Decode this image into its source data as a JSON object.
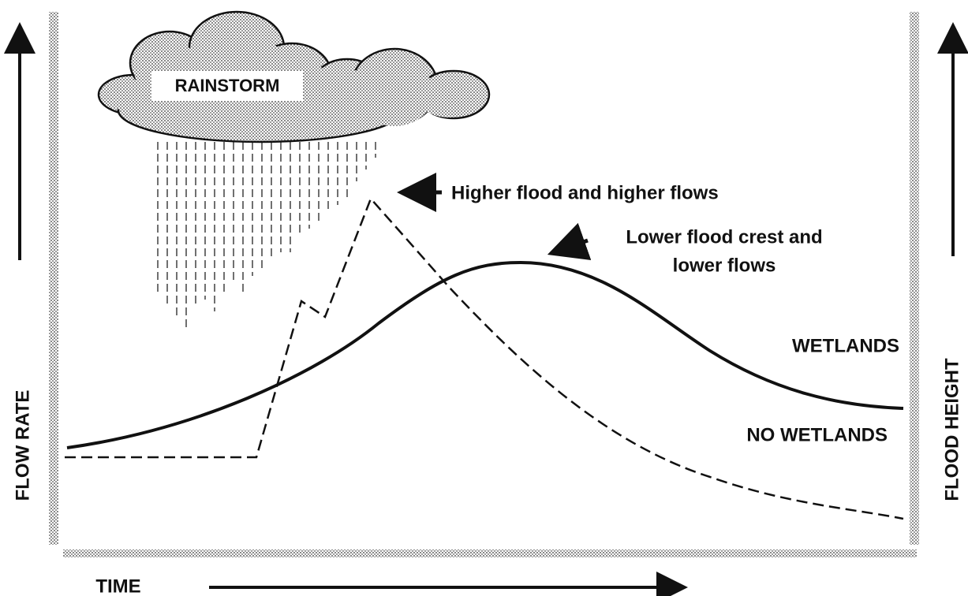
{
  "cloud": {
    "label": "RAINSTORM"
  },
  "annotations": {
    "higher": "Higher flood and higher flows",
    "lower": [
      "Lower flood crest and",
      "lower flows"
    ]
  },
  "curves": {
    "wetlands": "WETLANDS",
    "no_wetlands": "NO WETLANDS"
  },
  "axes": {
    "left": "FLOW RATE",
    "right": "FLOOD HEIGHT",
    "bottom": "TIME"
  }
}
